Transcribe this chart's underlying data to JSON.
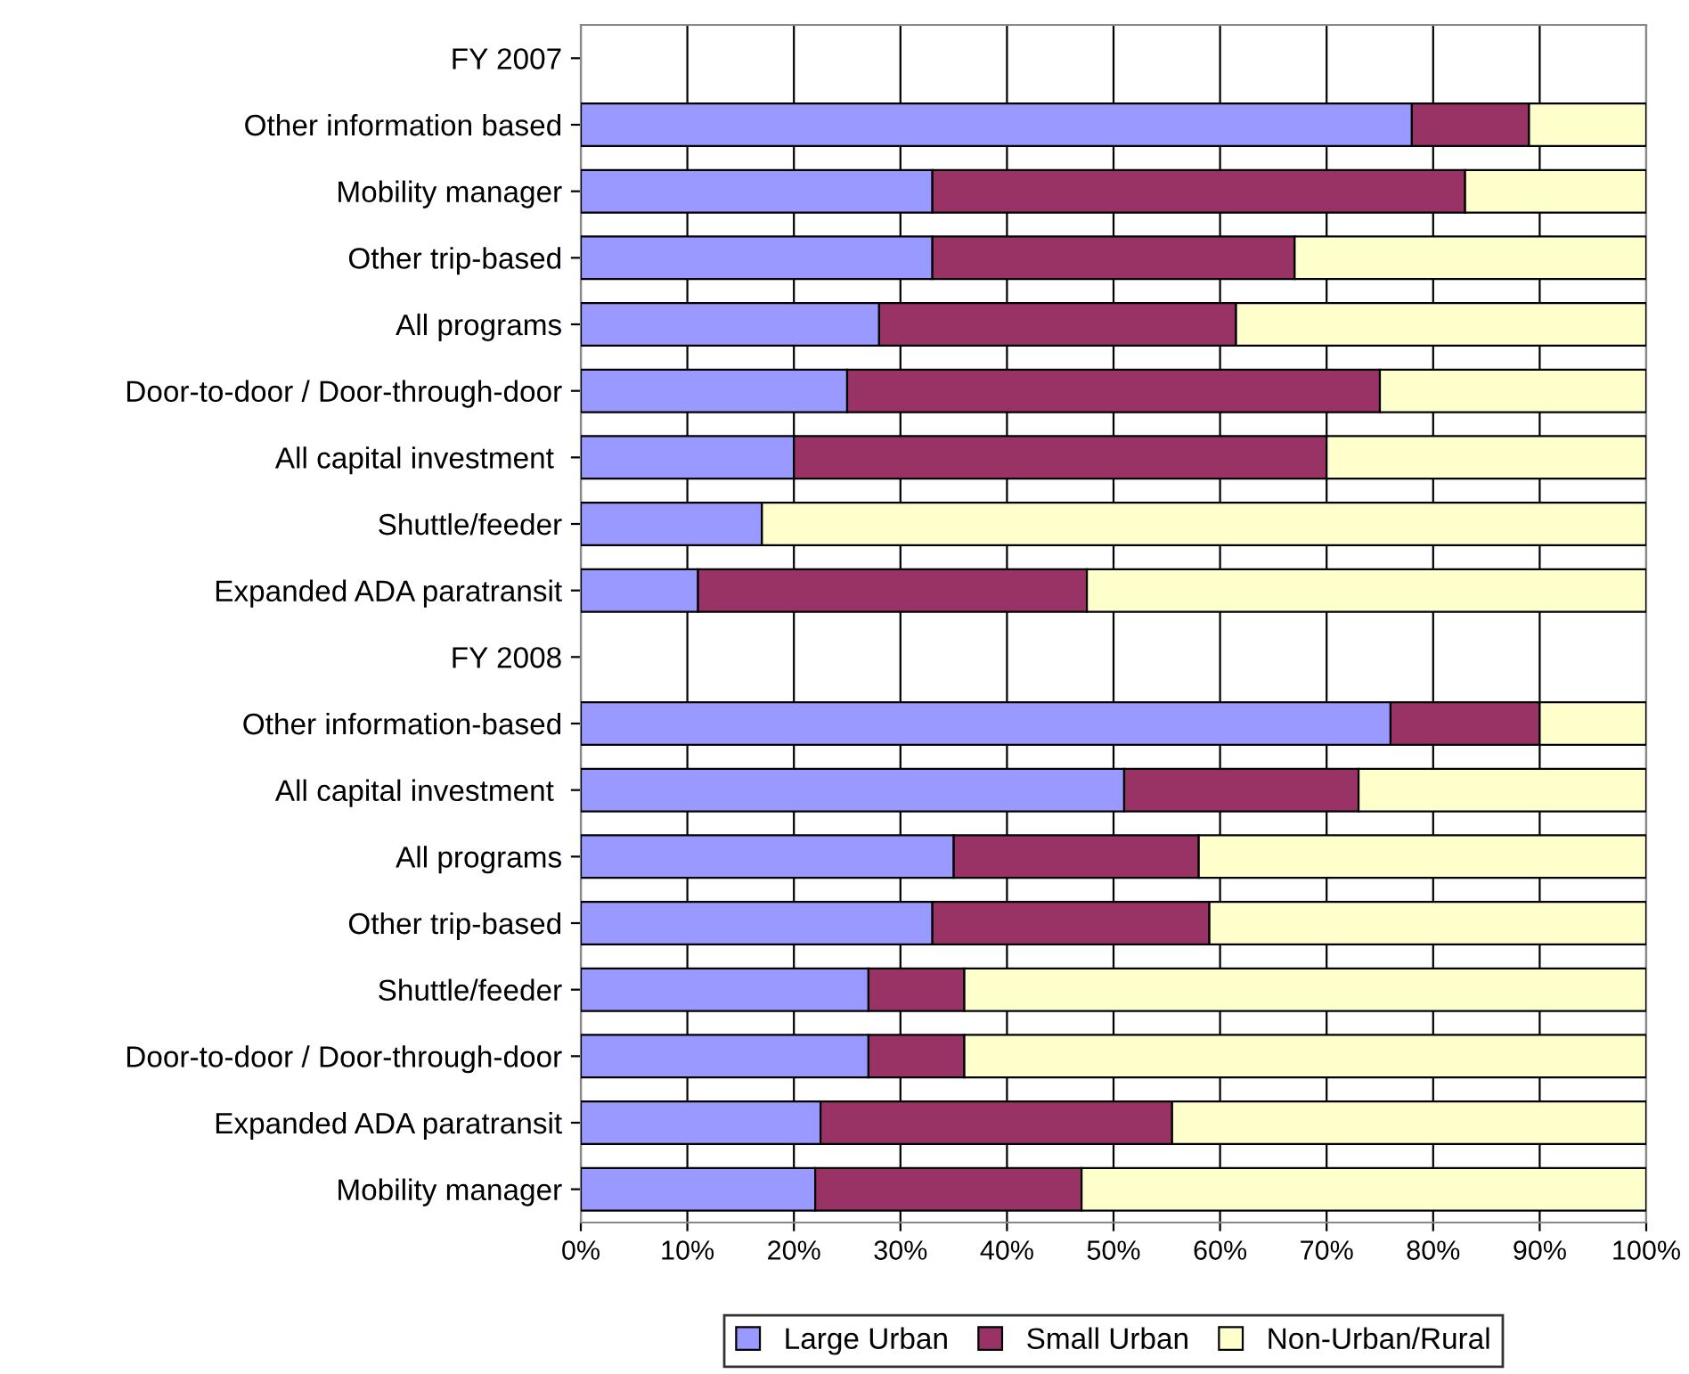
{
  "chart_data": {
    "type": "bar",
    "orientation": "horizontal",
    "stacked": true,
    "categories": [
      "FY 2007",
      "Other information based",
      "Mobility manager",
      "Other trip-based",
      "All programs",
      "Door-to-door / Door-through-door",
      "All capital investment ",
      "Shuttle/feeder",
      "Expanded ADA paratransit",
      "FY 2008",
      "Other information-based",
      "All capital investment ",
      "All programs",
      "Other trip-based",
      "Shuttle/feeder",
      "Door-to-door / Door-through-door",
      "Expanded ADA paratransit",
      "Mobility manager"
    ],
    "series": [
      {
        "name": "Large Urban",
        "color": "#9999ff",
        "values": [
          null,
          78,
          33,
          33,
          28,
          25,
          20,
          17,
          11,
          null,
          76,
          51,
          35,
          33,
          27,
          27,
          22.5,
          22
        ]
      },
      {
        "name": "Small Urban",
        "color": "#993366",
        "values": [
          null,
          11,
          50,
          34,
          33.5,
          50,
          50,
          0,
          36.5,
          null,
          14,
          22,
          23,
          26,
          9,
          9,
          33,
          25
        ]
      },
      {
        "name": "Non-Urban/Rural",
        "color": "#ffffcc",
        "values": [
          null,
          11,
          17,
          33,
          38.5,
          25,
          30,
          83,
          52.5,
          null,
          10,
          27,
          42,
          41,
          64,
          64,
          44.5,
          53
        ]
      }
    ],
    "xlim": [
      0,
      100
    ],
    "xticks": [
      {
        "value": 0,
        "label": "0%"
      },
      {
        "value": 10,
        "label": "10%"
      },
      {
        "value": 20,
        "label": "20%"
      },
      {
        "value": 30,
        "label": "30%"
      },
      {
        "value": 40,
        "label": "40%"
      },
      {
        "value": 50,
        "label": "50%"
      },
      {
        "value": 60,
        "label": "60%"
      },
      {
        "value": 70,
        "label": "70%"
      },
      {
        "value": 80,
        "label": "80%"
      },
      {
        "value": 90,
        "label": "90%"
      },
      {
        "value": 100,
        "label": "100%"
      }
    ],
    "grid": "x",
    "legend": "bottom"
  }
}
